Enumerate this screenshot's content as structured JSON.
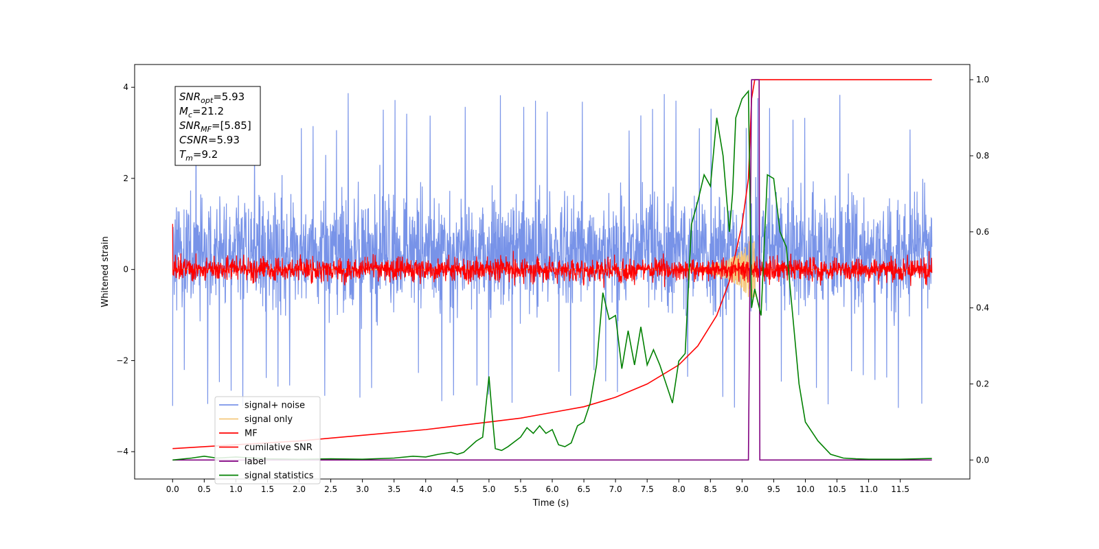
{
  "chart_data": {
    "type": "line",
    "title": "",
    "xlabel": "Time (s)",
    "ylabel": "Whitened strain",
    "xlim": [
      -0.6,
      12.6
    ],
    "ylim": [
      -4.6,
      4.5
    ],
    "y2lim": [
      -0.05,
      1.04
    ],
    "xticks": [
      0.0,
      0.5,
      1.0,
      1.5,
      2.0,
      2.5,
      3.0,
      3.5,
      4.0,
      4.5,
      5.0,
      5.5,
      6.0,
      6.5,
      7.0,
      7.5,
      8.0,
      8.5,
      9.0,
      9.5,
      10.0,
      10.5,
      11.0,
      11.5
    ],
    "xtick_labels": [
      "0.0",
      "0.5",
      "1.0",
      "1.5",
      "2.0",
      "2.5",
      "3.0",
      "3.5",
      "4.0",
      "4.5",
      "5.0",
      "5.5",
      "6.0",
      "6.5",
      "7.0",
      "7.5",
      "8.0",
      "8.5",
      "9.0",
      "9.5",
      "10.0",
      "10.5",
      "11.0",
      "11.5"
    ],
    "yticks": [
      -4,
      -2,
      0,
      2,
      4
    ],
    "ytick_labels": [
      "−4",
      "−2",
      "0",
      "2",
      "4"
    ],
    "y2ticks": [
      0.0,
      0.2,
      0.4,
      0.6,
      0.8,
      1.0
    ],
    "y2tick_labels": [
      "0.0",
      "0.2",
      "0.4",
      "0.6",
      "0.8",
      "1.0"
    ],
    "grid": false,
    "legend_position": "lower-left",
    "info_box": {
      "lines": [
        {
          "main": "SNR",
          "sub": "opt",
          "rest": "=5.93"
        },
        {
          "main": "M",
          "sub": "c",
          "rest": "=21.2"
        },
        {
          "main": "SNR",
          "sub": "MF",
          "rest": "=[5.85]"
        },
        {
          "main": "CSNR",
          "sub": "",
          "rest": "=5.93"
        },
        {
          "main": "T",
          "sub": "m",
          "rest": "=9.2"
        }
      ]
    },
    "noise_params": {
      "t_start": 0.0,
      "t_end": 12.0,
      "center": 0.4,
      "spread": 0.85,
      "max": 4.0,
      "min": -4.1,
      "color": "#7893e8"
    },
    "mf_params": {
      "center": 0.0,
      "spread": 0.18,
      "color": "#ff0000"
    },
    "signal_only": {
      "color": "#f5c77a",
      "chirp_center": 9.15
    },
    "series": [
      {
        "name": "signal+ noise",
        "axis": "left",
        "color": "#7893e8",
        "kind": "noise"
      },
      {
        "name": "signal only",
        "axis": "left",
        "color": "#f5c77a",
        "kind": "chirp"
      },
      {
        "name": "MF",
        "axis": "left",
        "color": "#ff0000",
        "kind": "mf"
      },
      {
        "name": "cumilative SNR",
        "axis": "right",
        "color": "#ff0000",
        "x": [
          0.0,
          1.0,
          2.0,
          3.0,
          4.0,
          5.0,
          5.5,
          6.0,
          6.5,
          7.0,
          7.5,
          8.0,
          8.3,
          8.6,
          8.8,
          9.0,
          9.1,
          9.15,
          9.2,
          12.0
        ],
        "y": [
          0.03,
          0.04,
          0.05,
          0.065,
          0.08,
          0.1,
          0.11,
          0.125,
          0.14,
          0.165,
          0.2,
          0.25,
          0.3,
          0.38,
          0.47,
          0.62,
          0.74,
          0.95,
          1.0,
          1.0
        ]
      },
      {
        "name": "label",
        "axis": "right",
        "color": "#800080",
        "x": [
          0.0,
          9.1,
          9.15,
          9.27,
          9.28,
          12.0
        ],
        "y": [
          0.0,
          0.0,
          1.0,
          1.0,
          0.0,
          0.0
        ]
      },
      {
        "name": "signal statistics",
        "axis": "right",
        "color": "#008000",
        "x": [
          0.0,
          0.3,
          0.5,
          0.7,
          1.0,
          1.5,
          2.0,
          2.5,
          3.0,
          3.5,
          3.8,
          4.0,
          4.2,
          4.4,
          4.5,
          4.6,
          4.8,
          4.9,
          5.0,
          5.05,
          5.1,
          5.2,
          5.3,
          5.5,
          5.6,
          5.7,
          5.8,
          5.9,
          6.0,
          6.1,
          6.2,
          6.3,
          6.4,
          6.5,
          6.6,
          6.7,
          6.8,
          6.9,
          7.0,
          7.1,
          7.2,
          7.3,
          7.4,
          7.5,
          7.6,
          7.7,
          7.8,
          7.9,
          8.0,
          8.1,
          8.2,
          8.25,
          8.3,
          8.4,
          8.5,
          8.6,
          8.7,
          8.8,
          8.85,
          8.9,
          9.0,
          9.1,
          9.15,
          9.2,
          9.3,
          9.4,
          9.5,
          9.6,
          9.7,
          9.8,
          9.9,
          10.0,
          10.2,
          10.4,
          10.6,
          10.8,
          11.0,
          11.5,
          12.0
        ],
        "y": [
          0.0,
          0.005,
          0.01,
          0.005,
          0.008,
          0.003,
          0.002,
          0.003,
          0.002,
          0.005,
          0.01,
          0.008,
          0.015,
          0.02,
          0.015,
          0.02,
          0.05,
          0.06,
          0.22,
          0.12,
          0.03,
          0.025,
          0.035,
          0.06,
          0.085,
          0.07,
          0.09,
          0.07,
          0.08,
          0.04,
          0.035,
          0.045,
          0.09,
          0.1,
          0.15,
          0.25,
          0.44,
          0.37,
          0.38,
          0.24,
          0.34,
          0.25,
          0.35,
          0.25,
          0.29,
          0.25,
          0.2,
          0.15,
          0.26,
          0.28,
          0.62,
          0.65,
          0.68,
          0.75,
          0.72,
          0.9,
          0.8,
          0.6,
          0.7,
          0.9,
          0.95,
          0.97,
          0.4,
          0.45,
          0.38,
          0.75,
          0.74,
          0.6,
          0.56,
          0.38,
          0.2,
          0.1,
          0.05,
          0.015,
          0.005,
          0.003,
          0.002,
          0.002,
          0.004
        ]
      }
    ]
  }
}
